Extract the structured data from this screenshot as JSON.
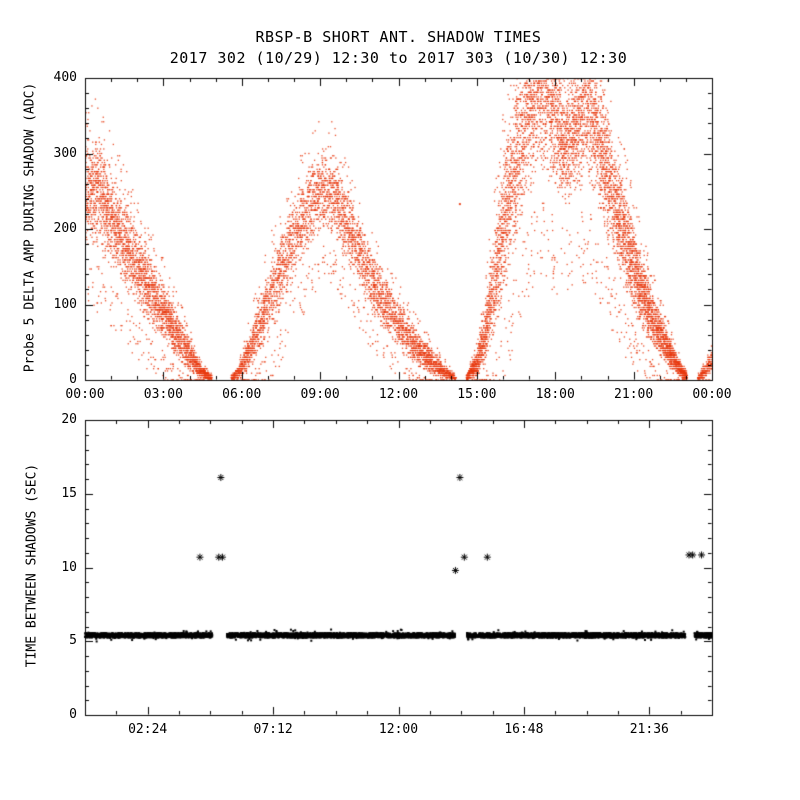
{
  "chart_data": [
    {
      "type": "scatter",
      "title": "RBSP-B SHORT ANT. SHADOW TIMES",
      "subtitle": "2017 302 (10/29) 12:30 to 2017 303 (10/30) 12:30",
      "ylabel": "Probe 5 DELTA AMP DURING SHADOW (ADC)",
      "marker_color": "#e8380e",
      "axis_color": "#000000",
      "xlim_hours": [
        0,
        24
      ],
      "ylim": [
        0,
        400
      ],
      "xtick_hours": [
        0,
        3,
        6,
        9,
        12,
        15,
        18,
        21,
        24
      ],
      "xtick_labels": [
        "00:00",
        "03:00",
        "06:00",
        "09:00",
        "12:00",
        "15:00",
        "18:00",
        "21:00",
        "00:00"
      ],
      "ytick_values": [
        0,
        100,
        200,
        300,
        400
      ],
      "ytick_labels": [
        "0",
        "100",
        "200",
        "300",
        "400"
      ],
      "envelope_segments": [
        {
          "n": 3000,
          "points": [
            [
              0.0,
              175,
              320
            ],
            [
              0.5,
              170,
              330
            ],
            [
              1.0,
              145,
              285
            ],
            [
              1.5,
              118,
              248
            ],
            [
              2.0,
              92,
              210
            ],
            [
              2.5,
              68,
              172
            ],
            [
              3.0,
              46,
              134
            ],
            [
              3.5,
              26,
              96
            ],
            [
              4.0,
              10,
              58
            ],
            [
              4.3,
              3,
              30
            ],
            [
              4.6,
              0,
              14
            ],
            [
              4.85,
              0,
              6
            ]
          ]
        },
        {
          "n": 4200,
          "points": [
            [
              5.6,
              0,
              6
            ],
            [
              5.9,
              0,
              20
            ],
            [
              6.2,
              8,
              55
            ],
            [
              6.5,
              22,
              95
            ],
            [
              7.0,
              48,
              150
            ],
            [
              7.5,
              85,
              200
            ],
            [
              8.0,
              125,
              245
            ],
            [
              8.5,
              162,
              285
            ],
            [
              9.0,
              190,
              312
            ],
            [
              9.4,
              195,
              315
            ],
            [
              9.8,
              168,
              278
            ],
            [
              10.2,
              142,
              245
            ],
            [
              10.6,
              112,
              210
            ],
            [
              11.0,
              85,
              175
            ],
            [
              11.5,
              60,
              140
            ],
            [
              12.0,
              40,
              110
            ],
            [
              12.5,
              22,
              80
            ],
            [
              13.0,
              10,
              55
            ],
            [
              13.5,
              3,
              32
            ],
            [
              14.0,
              0,
              12
            ],
            [
              14.2,
              0,
              5
            ]
          ]
        },
        {
          "n": 6500,
          "points": [
            [
              14.6,
              0,
              6
            ],
            [
              15.0,
              4,
              40
            ],
            [
              15.3,
              15,
              105
            ],
            [
              15.6,
              45,
              185
            ],
            [
              16.0,
              100,
              300
            ],
            [
              16.4,
              155,
              390
            ],
            [
              16.8,
              210,
              450
            ],
            [
              17.2,
              255,
              495
            ],
            [
              17.6,
              265,
              505
            ],
            [
              18.0,
              235,
              465
            ],
            [
              18.4,
              215,
              400
            ],
            [
              18.8,
              235,
              440
            ],
            [
              19.2,
              255,
              490
            ],
            [
              19.6,
              225,
              450
            ],
            [
              20.0,
              180,
              370
            ],
            [
              20.4,
              140,
              305
            ],
            [
              20.8,
              102,
              242
            ],
            [
              21.2,
              72,
              185
            ],
            [
              21.6,
              48,
              135
            ],
            [
              22.0,
              27,
              95
            ],
            [
              22.4,
              12,
              58
            ],
            [
              22.8,
              3,
              24
            ],
            [
              23.05,
              0,
              8
            ]
          ]
        },
        {
          "n": 220,
          "points": [
            [
              23.45,
              0,
              5
            ],
            [
              23.7,
              2,
              18
            ],
            [
              24.0,
              8,
              42
            ]
          ]
        }
      ],
      "extra_points": [
        [
          14.35,
          233
        ]
      ]
    },
    {
      "type": "scatter",
      "ylabel": "TIME BETWEEN SHADOWS (SEC)",
      "marker_color": "#000000",
      "axis_color": "#000000",
      "xlim_hours": [
        0,
        24
      ],
      "ylim": [
        0,
        20
      ],
      "xtick_hours": [
        2.4,
        7.2,
        12,
        16.8,
        21.6
      ],
      "xtick_labels": [
        "02:24",
        "07:12",
        "12:00",
        "16:48",
        "21:36"
      ],
      "ytick_values": [
        0,
        5,
        10,
        15,
        20
      ],
      "ytick_labels": [
        "0",
        "5",
        "10",
        "15",
        "20"
      ],
      "band": {
        "y": 5.4,
        "half_width": 0.15,
        "n": 7000,
        "gaps_hours": [
          [
            4.87,
            5.43
          ],
          [
            14.17,
            14.62
          ],
          [
            22.98,
            23.33
          ]
        ]
      },
      "outliers": [
        [
          4.4,
          10.7
        ],
        [
          5.12,
          10.7
        ],
        [
          5.26,
          10.7
        ],
        [
          5.2,
          16.1
        ],
        [
          14.18,
          9.8
        ],
        [
          14.35,
          16.1
        ],
        [
          14.52,
          10.7
        ],
        [
          15.4,
          10.7
        ],
        [
          23.12,
          10.85
        ],
        [
          23.26,
          10.85
        ],
        [
          23.6,
          10.85
        ]
      ]
    }
  ]
}
